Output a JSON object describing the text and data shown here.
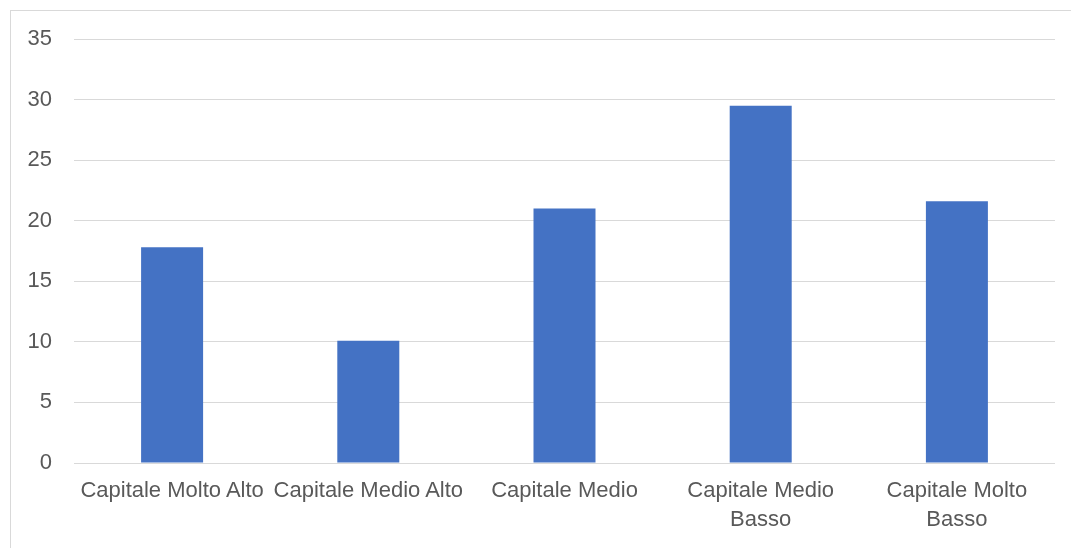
{
  "chart_data": {
    "type": "bar",
    "categories": [
      "Capitale Molto Alto",
      "Capitale Medio Alto",
      "Capitale Medio",
      "Capitale Medio Basso",
      "Capitale Molto Basso"
    ],
    "values": [
      17.8,
      10.1,
      21.0,
      29.5,
      21.6
    ],
    "color": "#4472c4",
    "ylim": [
      0,
      35
    ],
    "yticks": [
      0,
      5,
      10,
      15,
      20,
      25,
      30,
      35
    ],
    "grid": "y"
  }
}
